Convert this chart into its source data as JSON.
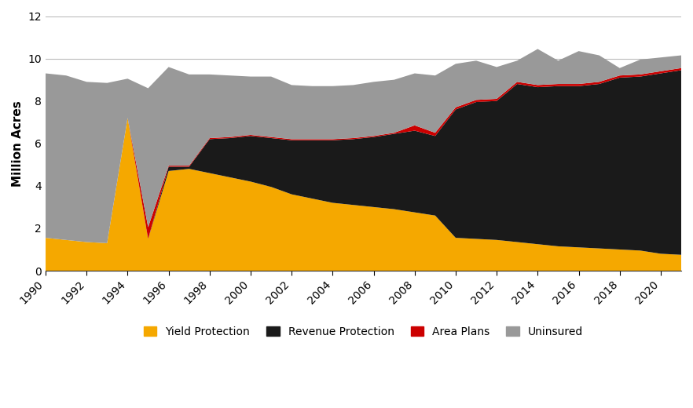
{
  "years": [
    1990,
    1991,
    1992,
    1993,
    1994,
    1995,
    1996,
    1997,
    1998,
    1999,
    2000,
    2001,
    2002,
    2003,
    2004,
    2005,
    2006,
    2007,
    2008,
    2009,
    2010,
    2011,
    2012,
    2013,
    2014,
    2015,
    2016,
    2017,
    2018,
    2019,
    2020,
    2021
  ],
  "yield_protection": [
    1.55,
    1.45,
    1.35,
    1.3,
    7.2,
    1.5,
    4.7,
    4.8,
    4.6,
    4.4,
    4.2,
    3.95,
    3.6,
    3.4,
    3.2,
    3.1,
    3.0,
    2.9,
    2.75,
    2.6,
    1.55,
    1.5,
    1.45,
    1.35,
    1.25,
    1.15,
    1.1,
    1.05,
    1.0,
    0.95,
    0.8,
    0.75
  ],
  "revenue_protection": [
    0.0,
    0.0,
    0.0,
    0.0,
    0.0,
    0.0,
    0.2,
    0.1,
    1.6,
    1.85,
    2.15,
    2.3,
    2.55,
    2.75,
    2.95,
    3.1,
    3.3,
    3.55,
    3.85,
    3.75,
    6.05,
    6.45,
    6.55,
    7.45,
    7.4,
    7.55,
    7.6,
    7.75,
    8.1,
    8.2,
    8.5,
    8.7
  ],
  "area_plans": [
    0.0,
    0.0,
    0.0,
    0.0,
    0.0,
    0.55,
    0.05,
    0.05,
    0.05,
    0.05,
    0.05,
    0.05,
    0.05,
    0.05,
    0.05,
    0.05,
    0.05,
    0.05,
    0.25,
    0.15,
    0.1,
    0.1,
    0.1,
    0.1,
    0.1,
    0.1,
    0.1,
    0.1,
    0.1,
    0.1,
    0.1,
    0.1
  ],
  "uninsured": [
    7.75,
    7.75,
    7.55,
    7.55,
    1.85,
    6.55,
    4.65,
    4.3,
    3.0,
    2.9,
    2.75,
    2.85,
    2.55,
    2.5,
    2.5,
    2.5,
    2.55,
    2.5,
    2.45,
    2.7,
    2.05,
    1.85,
    1.5,
    1.0,
    1.7,
    1.1,
    1.55,
    1.25,
    0.35,
    0.7,
    0.65,
    0.6
  ],
  "yield_color": "#F5A800",
  "revenue_color": "#1A1A1A",
  "area_color": "#CC0000",
  "uninsured_color": "#999999",
  "ylabel": "Million Acres",
  "ylim": [
    0,
    12
  ],
  "yticks": [
    0,
    2,
    4,
    6,
    8,
    10,
    12
  ],
  "background_color": "#FFFFFF",
  "grid_color": "#BBBBBB"
}
